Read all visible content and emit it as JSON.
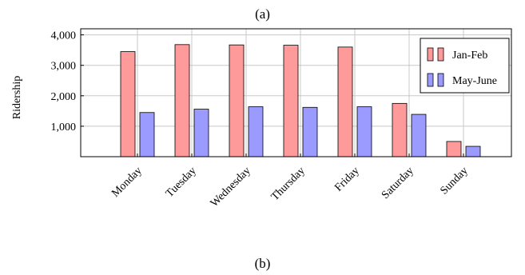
{
  "captions": {
    "top": "(a)",
    "bottom": "(b)"
  },
  "chart_data": {
    "type": "bar",
    "categories": [
      "Monday",
      "Tuesday",
      "Wednesday",
      "Thursday",
      "Friday",
      "Saturday",
      "Sunday"
    ],
    "series": [
      {
        "name": "Jan-Feb",
        "values": [
          3450,
          3680,
          3670,
          3660,
          3600,
          1750,
          500
        ],
        "color": "#ff9a9a"
      },
      {
        "name": "May-June",
        "values": [
          1450,
          1560,
          1640,
          1620,
          1640,
          1390,
          340
        ],
        "color": "#9a9aff"
      }
    ],
    "ylabel": "Ridership",
    "xlabel": "",
    "ylim": [
      0,
      4200
    ],
    "yticks": [
      1000,
      2000,
      3000,
      4000
    ],
    "ytick_labels": [
      "1,000",
      "2,000",
      "3,000",
      "4,000"
    ],
    "grid": true,
    "legend_position": "top-right"
  }
}
